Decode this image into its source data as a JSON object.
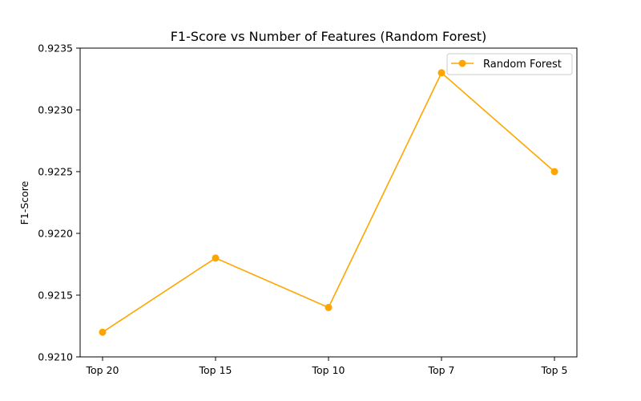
{
  "chart_data": {
    "type": "line",
    "title": "F1-Score vs Number of Features (Random Forest)",
    "xlabel": "",
    "ylabel": "F1-Score",
    "categories": [
      "Top 20",
      "Top 15",
      "Top 10",
      "Top 7",
      "Top 5"
    ],
    "series": [
      {
        "name": "Random Forest",
        "values": [
          0.9212,
          0.9218,
          0.9214,
          0.9233,
          0.9225
        ],
        "color": "#FFA500"
      }
    ],
    "ylim": [
      0.921,
      0.9235
    ],
    "yticks": [
      "0.9210",
      "0.9215",
      "0.9220",
      "0.9225",
      "0.9230",
      "0.9235"
    ],
    "grid": false,
    "legend": "top-right"
  }
}
